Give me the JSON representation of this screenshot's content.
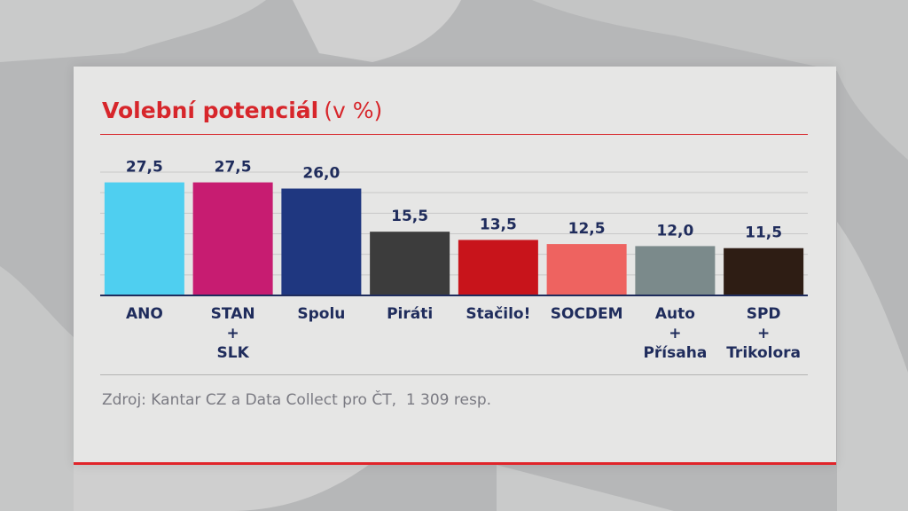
{
  "header": {
    "title": "Volební potenciál",
    "unit": "(v %)"
  },
  "footer": {
    "source": "Zdroj: Kantar CZ a Data Collect pro ČT,  1 309 resp."
  },
  "chart_data": {
    "type": "bar",
    "title": "Volební potenciál (v %)",
    "categories": [
      [
        "ANO"
      ],
      [
        "STAN",
        "+",
        "SLK"
      ],
      [
        "Spolu"
      ],
      [
        "Piráti"
      ],
      [
        "Stačilo!"
      ],
      [
        "SOCDEM"
      ],
      [
        "Auto",
        "+",
        "Přísaha"
      ],
      [
        "SPD",
        "+",
        "Trikolora"
      ]
    ],
    "values": [
      27.5,
      27.5,
      26.0,
      15.5,
      13.5,
      12.5,
      12.0,
      11.5
    ],
    "value_labels": [
      "27,5",
      "27,5",
      "26,0",
      "15,5",
      "13,5",
      "12,5",
      "12,0",
      "11,5"
    ],
    "colors": [
      "#4fcff0",
      "#c71c71",
      "#1f3780",
      "#3c3c3c",
      "#c8141b",
      "#ee6360",
      "#7b8a8b",
      "#2e1d14"
    ],
    "grid": true,
    "legend": "none",
    "ylim": [
      0,
      30
    ]
  },
  "colors": {
    "accent": "#d7262b",
    "label_text": "#1f2c5c",
    "panel_bg": "#e6e6e5"
  }
}
